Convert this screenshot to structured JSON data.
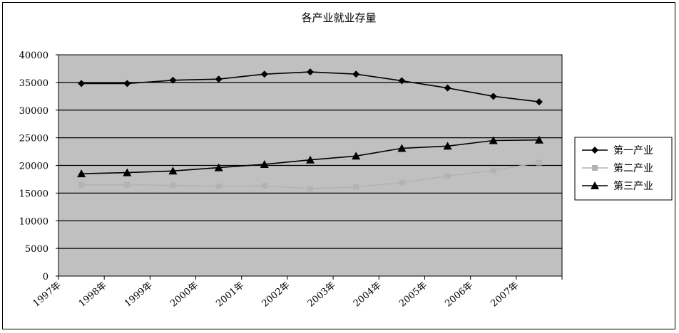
{
  "chart_data": {
    "type": "line",
    "title": "各产业就业存量",
    "xlabel": "",
    "ylabel": "",
    "categories": [
      "1997年",
      "1998年",
      "1999年",
      "2000年",
      "2001年",
      "2002年",
      "2003年",
      "2004年",
      "2005年",
      "2006年",
      "2007年"
    ],
    "ylim": [
      0,
      40000
    ],
    "yticks": [
      0,
      5000,
      10000,
      15000,
      20000,
      25000,
      30000,
      35000,
      40000
    ],
    "grid": "major-horizontal",
    "legend_position": "right",
    "series": [
      {
        "name": "第一产业",
        "color": "#000000",
        "marker": "diamond",
        "values": [
          34800,
          34800,
          35400,
          35600,
          36500,
          36900,
          36500,
          35300,
          34000,
          32500,
          31500
        ]
      },
      {
        "name": "第二产业",
        "color": "#b3b3b3",
        "marker": "square",
        "values": [
          16500,
          16500,
          16400,
          16200,
          16300,
          15800,
          16100,
          16900,
          18100,
          19100,
          20500
        ]
      },
      {
        "name": "第三产业",
        "color": "#000000",
        "marker": "triangle",
        "values": [
          18500,
          18700,
          19000,
          19600,
          20200,
          21000,
          21700,
          23100,
          23500,
          24500,
          24600
        ]
      }
    ],
    "plot_background": "#c0c0c0"
  }
}
